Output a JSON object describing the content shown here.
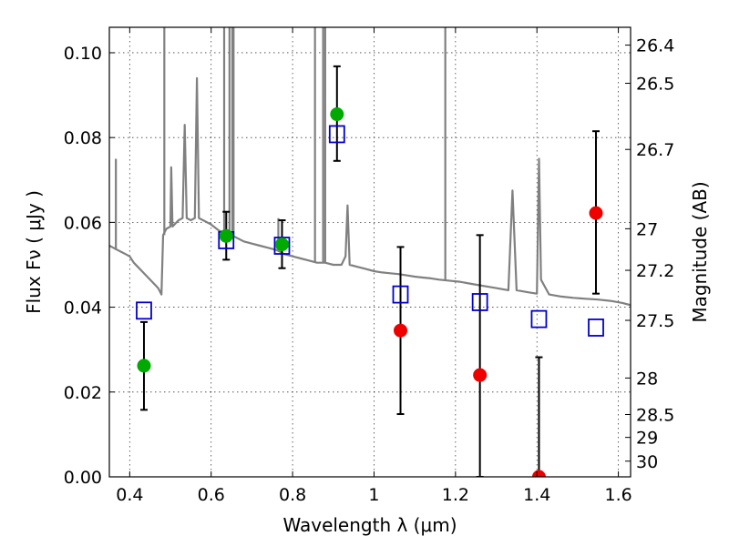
{
  "chart_data": {
    "type": "scatter",
    "title": "",
    "xlabel": "Wavelength  λ (μm)",
    "ylabel": "Flux  Fν  ( μJy )",
    "ylabel_right": "Magnitude (AB)",
    "xlim": [
      0.35,
      1.63
    ],
    "ylim": [
      0.0,
      0.106
    ],
    "grid": true,
    "x_ticks": [
      {
        "value": 0.4,
        "label": "0.4"
      },
      {
        "value": 0.6,
        "label": "0.6"
      },
      {
        "value": 0.8,
        "label": "0.8"
      },
      {
        "value": 1.0,
        "label": "1"
      },
      {
        "value": 1.2,
        "label": "1.2"
      },
      {
        "value": 1.4,
        "label": "1.4"
      },
      {
        "value": 1.6,
        "label": "1.6"
      }
    ],
    "y_ticks": [
      {
        "value": 0.0,
        "label": "0.00"
      },
      {
        "value": 0.02,
        "label": "0.02"
      },
      {
        "value": 0.04,
        "label": "0.04"
      },
      {
        "value": 0.06,
        "label": "0.06"
      },
      {
        "value": 0.08,
        "label": "0.08"
      },
      {
        "value": 0.1,
        "label": "0.10"
      }
    ],
    "right_ticks": [
      {
        "label": "26.4",
        "flux": 0.1018
      },
      {
        "label": "26.5",
        "flux": 0.0928
      },
      {
        "label": "26.7",
        "flux": 0.0772
      },
      {
        "label": "27",
        "flux": 0.0585
      },
      {
        "label": "27.2",
        "flux": 0.0487
      },
      {
        "label": "27.5",
        "flux": 0.0369
      },
      {
        "label": "28",
        "flux": 0.0233
      },
      {
        "label": "28.5",
        "flux": 0.0147
      },
      {
        "label": "29",
        "flux": 0.0093
      },
      {
        "label": "30",
        "flux": 0.0037
      }
    ],
    "colors": {
      "model": "#808080",
      "model_photometry": "#0000cc",
      "detection": "#00aa00",
      "non_detection": "#ee0000",
      "errorbar": "#000000"
    },
    "series": [
      {
        "kind": "line",
        "color": "#808080",
        "points": [
          [
            0.35,
            0.0545
          ],
          [
            0.36,
            0.054
          ],
          [
            0.37,
            0.0535
          ],
          [
            0.38,
            0.053
          ],
          [
            0.39,
            0.0525
          ],
          [
            0.4,
            0.052
          ],
          [
            0.41,
            0.0505
          ],
          [
            0.42,
            0.0495
          ],
          [
            0.43,
            0.0485
          ],
          [
            0.44,
            0.0475
          ],
          [
            0.45,
            0.0465
          ],
          [
            0.46,
            0.0455
          ],
          [
            0.47,
            0.0445
          ],
          [
            0.478,
            0.043
          ],
          [
            0.482,
            0.057
          ],
          [
            0.49,
            0.0585
          ],
          [
            0.5,
            0.059
          ],
          [
            0.502,
            0.073
          ],
          [
            0.505,
            0.059
          ],
          [
            0.52,
            0.0605
          ],
          [
            0.53,
            0.061
          ],
          [
            0.535,
            0.083
          ],
          [
            0.54,
            0.061
          ],
          [
            0.55,
            0.0605
          ],
          [
            0.56,
            0.061
          ],
          [
            0.565,
            0.094
          ],
          [
            0.57,
            0.061
          ],
          [
            0.58,
            0.0605
          ],
          [
            0.6,
            0.0595
          ],
          [
            0.62,
            0.058
          ],
          [
            0.64,
            0.0575
          ],
          [
            0.66,
            0.0565
          ],
          [
            0.68,
            0.0555
          ],
          [
            0.7,
            0.055
          ],
          [
            0.72,
            0.0545
          ],
          [
            0.74,
            0.054
          ],
          [
            0.76,
            0.0535
          ],
          [
            0.78,
            0.0525
          ],
          [
            0.8,
            0.052
          ],
          [
            0.82,
            0.0515
          ],
          [
            0.84,
            0.051
          ],
          [
            0.86,
            0.0505
          ],
          [
            0.88,
            0.0505
          ],
          [
            0.9,
            0.05
          ],
          [
            0.92,
            0.05
          ],
          [
            0.93,
            0.052
          ],
          [
            0.935,
            0.064
          ],
          [
            0.94,
            0.05
          ],
          [
            0.96,
            0.0495
          ],
          [
            0.98,
            0.049
          ],
          [
            1.0,
            0.0485
          ],
          [
            1.02,
            0.0482
          ],
          [
            1.04,
            0.048
          ],
          [
            1.06,
            0.0478
          ],
          [
            1.08,
            0.0475
          ],
          [
            1.1,
            0.0472
          ],
          [
            1.12,
            0.047
          ],
          [
            1.14,
            0.0468
          ],
          [
            1.16,
            0.0465
          ],
          [
            1.19,
            0.0462
          ],
          [
            1.21,
            0.046
          ],
          [
            1.24,
            0.0455
          ],
          [
            1.27,
            0.045
          ],
          [
            1.3,
            0.0445
          ],
          [
            1.33,
            0.044
          ],
          [
            1.34,
            0.0675
          ],
          [
            1.35,
            0.044
          ],
          [
            1.38,
            0.0435
          ],
          [
            1.4,
            0.0432
          ],
          [
            1.405,
            0.075
          ],
          [
            1.41,
            0.0465
          ],
          [
            1.43,
            0.043
          ],
          [
            1.46,
            0.0425
          ],
          [
            1.49,
            0.0422
          ],
          [
            1.52,
            0.042
          ],
          [
            1.55,
            0.0418
          ],
          [
            1.58,
            0.0415
          ],
          [
            1.61,
            0.041
          ],
          [
            1.63,
            0.0405
          ]
        ],
        "emission_lines": [
          [
            0.366,
            0.075
          ],
          [
            0.485,
            0.2
          ],
          [
            0.632,
            0.2
          ],
          [
            0.645,
            0.2
          ],
          [
            0.652,
            0.2
          ],
          [
            0.655,
            0.2
          ],
          [
            0.765,
            0.061
          ],
          [
            0.855,
            0.2
          ],
          [
            0.875,
            0.2
          ],
          [
            0.88,
            0.2
          ],
          [
            1.175,
            0.2
          ],
          [
            1.405,
            0.075
          ]
        ]
      },
      {
        "kind": "model_photometry",
        "marker": "open-square",
        "color": "#0000cc",
        "x": [
          0.435,
          0.637,
          0.774,
          0.909,
          1.065,
          1.26,
          1.405,
          1.545
        ],
        "y": [
          0.0392,
          0.0558,
          0.0545,
          0.0808,
          0.043,
          0.0412,
          0.0372,
          0.0352
        ]
      },
      {
        "kind": "detections",
        "marker": "filled-circle",
        "color": "#00aa00",
        "x": [
          0.435,
          0.637,
          0.774,
          0.909
        ],
        "y": [
          0.0262,
          0.0568,
          0.0548,
          0.0855
        ],
        "err_low": [
          0.0158,
          0.0512,
          0.0492,
          0.0745
        ],
        "err_high": [
          0.0365,
          0.0625,
          0.0605,
          0.0968
        ]
      },
      {
        "kind": "non_detections",
        "marker": "filled-circle",
        "color": "#ee0000",
        "x": [
          1.065,
          1.26,
          1.405,
          1.545
        ],
        "y": [
          0.0345,
          0.024,
          0.0,
          0.0622
        ],
        "err_low": [
          0.0148,
          0.0,
          0.0,
          0.0432
        ],
        "err_high": [
          0.0542,
          0.057,
          0.0282,
          0.0815
        ]
      }
    ]
  }
}
